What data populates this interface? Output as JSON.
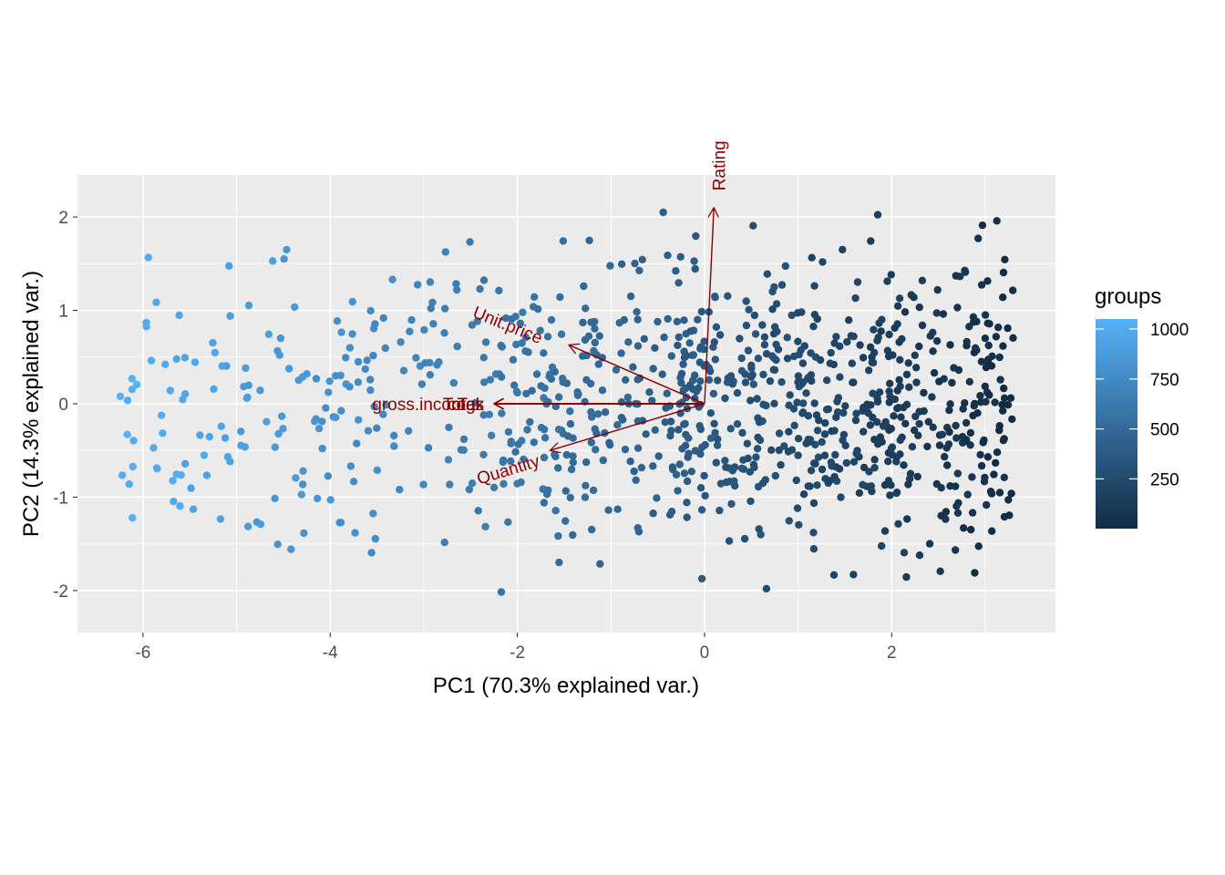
{
  "chart_data": {
    "type": "scatter",
    "xlabel": "PC1 (70.3% explained var.)",
    "ylabel": "PC2 (14.3% explained var.)",
    "xlim": [
      -6.7,
      3.75
    ],
    "ylim": [
      -2.45,
      2.45
    ],
    "x_ticks": [
      -6,
      -4,
      -2,
      0,
      2
    ],
    "x_tick_labels": [
      "-6",
      "-4",
      "-2",
      "0",
      "2"
    ],
    "y_ticks": [
      -2,
      -1,
      0,
      1,
      2
    ],
    "y_tick_labels": [
      "-2",
      "-1",
      "0",
      "1",
      "2"
    ],
    "grid": true,
    "legend": {
      "title": "groups",
      "placement": "right",
      "range": [
        1,
        1050
      ],
      "breaks": [
        250,
        500,
        750,
        1000
      ],
      "break_labels": [
        "250",
        "500",
        "750",
        "1000"
      ],
      "color_low": "#132B43",
      "color_high": "#56B1F7"
    },
    "loadings": [
      {
        "name": "Unit.price",
        "x": -1.45,
        "y": 0.63,
        "label_x": -2.1,
        "label_y": 0.85,
        "angle": 22
      },
      {
        "name": "Quantity",
        "x": -1.65,
        "y": -0.5,
        "label_x": -2.1,
        "label_y": -0.7,
        "angle": -17
      },
      {
        "name": "Tax",
        "x": -2.25,
        "y": 0.0,
        "label_x": -2.5,
        "label_y": 0.0,
        "angle": 0
      },
      {
        "name": "Total",
        "x": -2.25,
        "y": 0.0,
        "label_x": -2.6,
        "label_y": 0.0,
        "angle": 0
      },
      {
        "name": "cogs",
        "x": -2.25,
        "y": 0.0,
        "label_x": -2.55,
        "label_y": 0.0,
        "angle": 0
      },
      {
        "name": "gross.income",
        "x": -2.25,
        "y": 0.0,
        "label_x": -3.0,
        "label_y": 0.0,
        "angle": 0
      },
      {
        "name": "Rating",
        "x": 0.1,
        "y": 2.1,
        "label_x": 0.15,
        "label_y": 2.55,
        "angle": -90
      }
    ],
    "loading_color": "#8b0000",
    "generated_points": {
      "n": 1000,
      "note_fields_only": true,
      "x_range": [
        -6.25,
        3.3
      ],
      "y_range": [
        -2.2,
        2.2
      ]
    }
  }
}
